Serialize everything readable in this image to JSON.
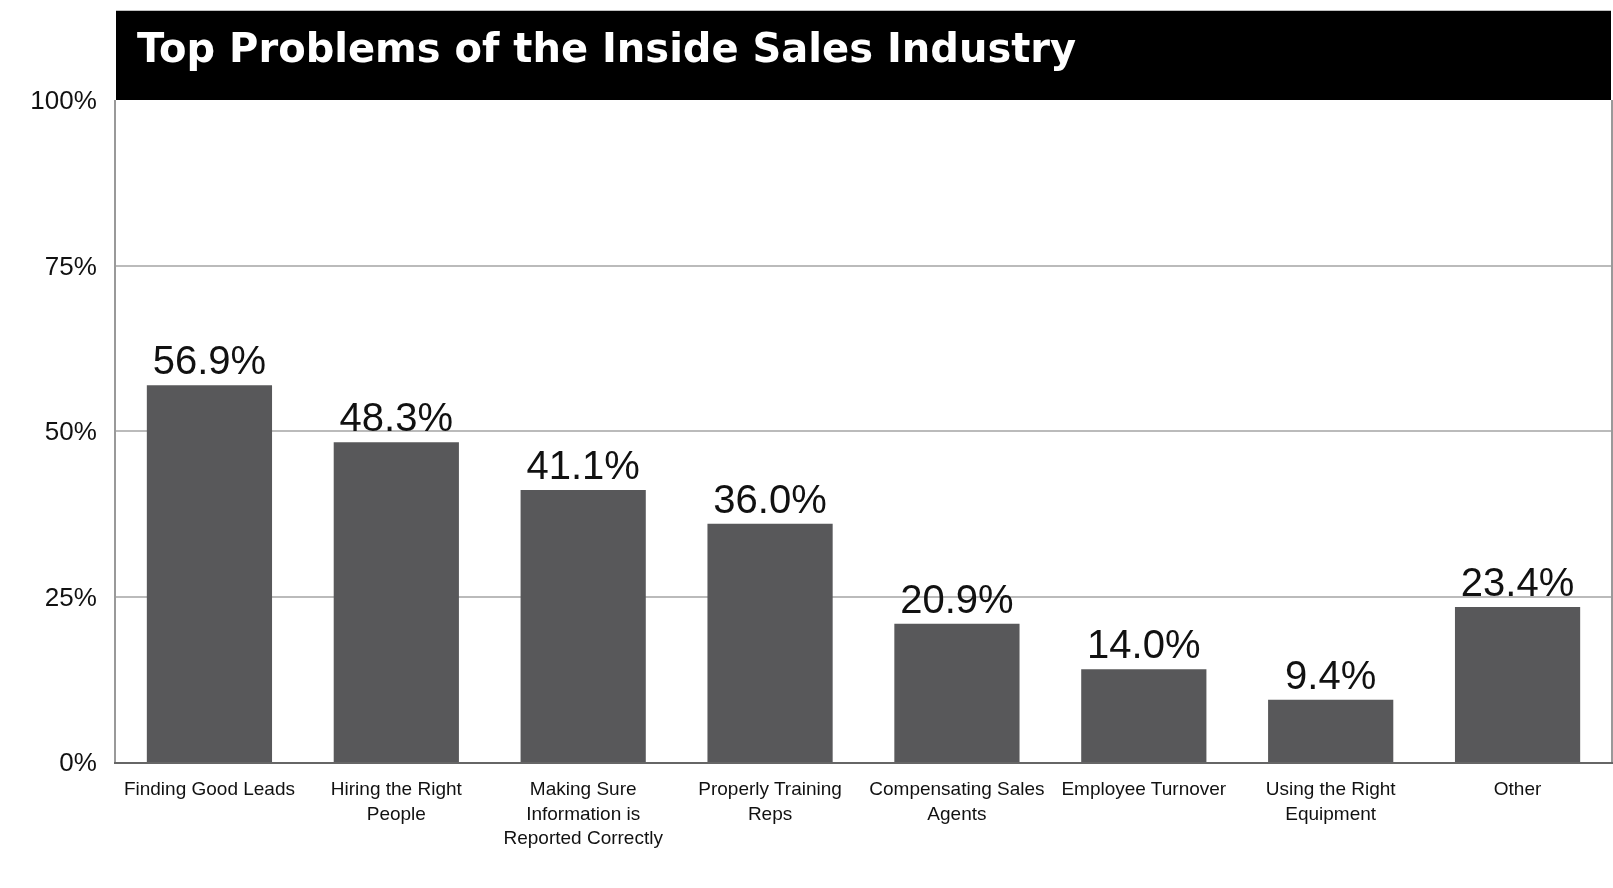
{
  "chart_data": {
    "type": "bar",
    "title": "Top Problems of the Inside Sales Industry",
    "categories": [
      "Finding Good Leads",
      "Hiring the Right People",
      "Making Sure Information is Reported Correctly",
      "Properly Training Reps",
      "Compensating Sales Agents",
      "Employee Turnover",
      "Using the Right Equipment",
      "Other"
    ],
    "values": [
      56.9,
      48.3,
      41.1,
      36.0,
      20.9,
      14.0,
      9.4,
      23.4
    ],
    "value_labels": [
      "56.9%",
      "48.3%",
      "41.1%",
      "36.0%",
      "20.9%",
      "14.0%",
      "9.4%",
      "23.4%"
    ],
    "color": "#58585a",
    "ylim": [
      0,
      100
    ],
    "yticks": [
      {
        "value": 0,
        "label": "0%"
      },
      {
        "value": 25,
        "label": "25%"
      },
      {
        "value": 50,
        "label": "50%"
      },
      {
        "value": 75,
        "label": "75%"
      },
      {
        "value": 100,
        "label": "100%"
      }
    ],
    "grid": "y"
  }
}
